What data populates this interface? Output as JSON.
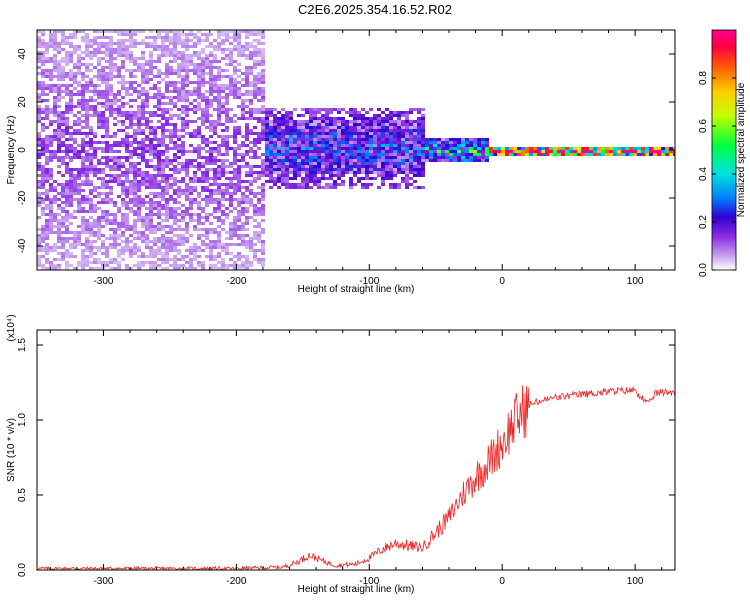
{
  "title": "C2E6.2025.354.16.52.R02",
  "chart_data": [
    {
      "type": "heatmap",
      "name": "spectrogram",
      "xlabel": "Height of straight line (km)",
      "ylabel": "Frequency (Hz)",
      "xlim": [
        -350,
        130
      ],
      "ylim": [
        -50,
        50
      ],
      "xticks": [
        -300,
        -200,
        -100,
        0,
        100
      ],
      "xtick_labels": [
        "-300",
        "-200",
        "-100",
        "0",
        "100"
      ],
      "yticks": [
        -40,
        -20,
        0,
        20,
        40
      ],
      "ytick_labels": [
        "-40",
        "-20",
        "0",
        "20",
        "40"
      ],
      "colorbar": {
        "label": "Normalized spectral amplitude",
        "range": [
          0,
          1
        ],
        "ticks": [
          0.0,
          0.2,
          0.4,
          0.6,
          0.8
        ],
        "tick_labels": [
          "0.0",
          "0.2",
          "0.4",
          "0.6",
          "0.8"
        ],
        "colormap": [
          "#ffffff",
          "#c8a0f0",
          "#8a2be2",
          "#3000d0",
          "#0080ff",
          "#00e0e0",
          "#00ff40",
          "#c0ff00",
          "#ffd000",
          "#ff6000",
          "#ff0040",
          "#ff0090"
        ]
      },
      "regions": [
        {
          "x_range": [
            -350,
            -180
          ],
          "f_range": [
            -50,
            50
          ],
          "amplitude": 0.15,
          "description": "broadband noise"
        },
        {
          "x_range": [
            -180,
            -60
          ],
          "f_range": [
            -15,
            18
          ],
          "amplitude": 0.3
        },
        {
          "x_range": [
            -60,
            -10
          ],
          "f_range": [
            -5,
            5
          ],
          "amplitude": 0.45
        },
        {
          "x_range": [
            -10,
            130
          ],
          "f_range": [
            -2,
            2
          ],
          "amplitude": 0.95,
          "description": "strong narrow band near 0 Hz"
        }
      ]
    },
    {
      "type": "line",
      "name": "snr",
      "xlabel": "Height of straight line (km)",
      "ylabel": "SNR (10 * v/v)",
      "yscale_label": "(x10⁴)",
      "xlim": [
        -350,
        130
      ],
      "ylim": [
        0,
        1.6
      ],
      "xticks": [
        -300,
        -200,
        -100,
        0,
        100
      ],
      "xtick_labels": [
        "-300",
        "-200",
        "-100",
        "0",
        "100"
      ],
      "yticks": [
        0.0,
        0.5,
        1.0,
        1.5
      ],
      "ytick_labels": [
        "0.0",
        "0.5",
        "1.0",
        "1.5"
      ],
      "series": [
        {
          "name": "SNR",
          "color": "#ee2222",
          "x": [
            -350,
            -300,
            -200,
            -165,
            -155,
            -145,
            -135,
            -125,
            -110,
            -100,
            -90,
            -80,
            -70,
            -60,
            -50,
            -40,
            -30,
            -20,
            -10,
            0,
            10,
            20,
            30,
            40,
            60,
            80,
            100,
            110,
            115,
            130
          ],
          "y": [
            0.01,
            0.01,
            0.01,
            0.02,
            0.05,
            0.1,
            0.06,
            0.03,
            0.04,
            0.08,
            0.14,
            0.18,
            0.16,
            0.15,
            0.25,
            0.35,
            0.5,
            0.62,
            0.72,
            0.85,
            1.0,
            1.1,
            1.13,
            1.15,
            1.17,
            1.19,
            1.2,
            1.1,
            1.18,
            1.19
          ]
        }
      ]
    }
  ]
}
